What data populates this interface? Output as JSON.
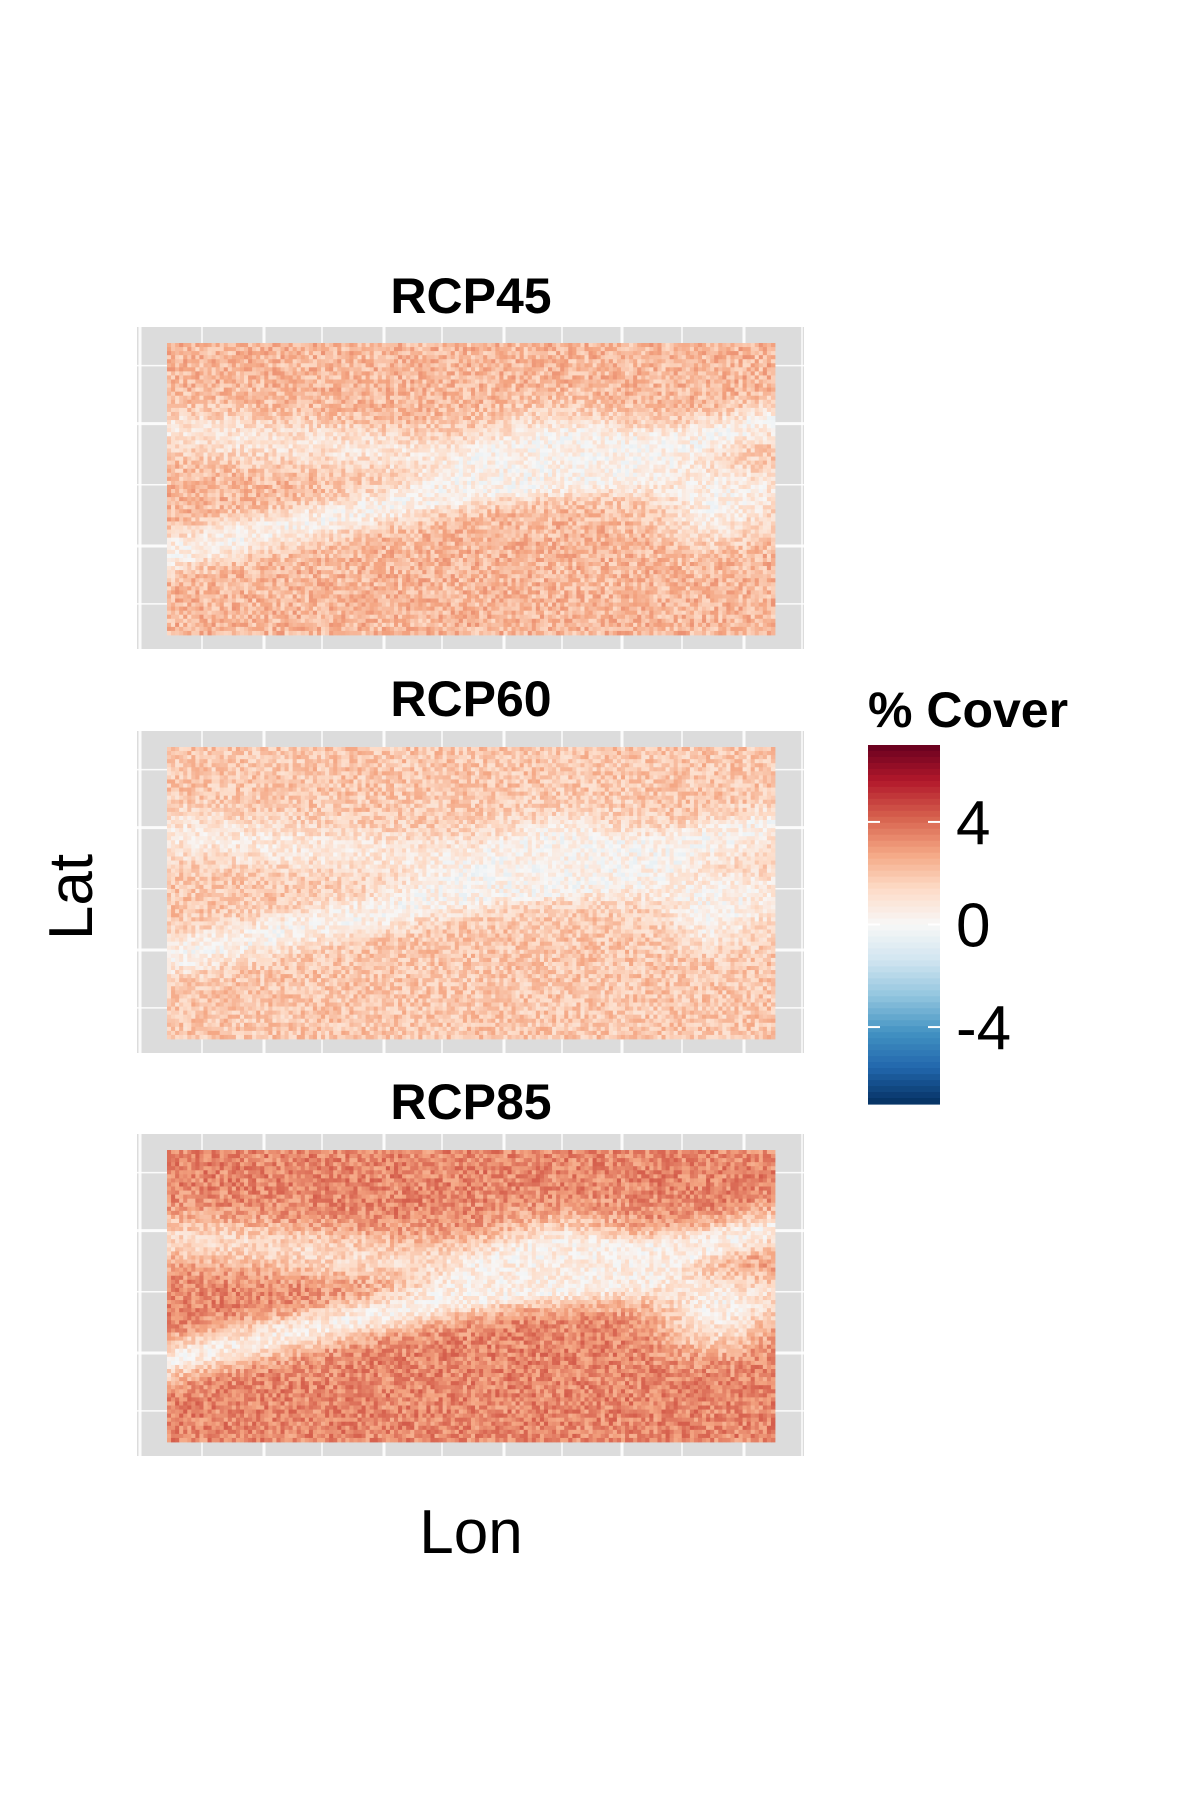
{
  "chart_data": {
    "type": "heatmap",
    "panels": [
      {
        "title": "RCP45",
        "intensity": 2.3
      },
      {
        "title": "RCP60",
        "intensity": 1.9
      },
      {
        "title": "RCP85",
        "intensity": 3.4
      }
    ],
    "xlabel": "Lon",
    "ylabel": "Lat",
    "legend": {
      "title": "% Cover",
      "ticks": [
        "4",
        "0",
        "-4"
      ],
      "tick_values": [
        4,
        0,
        -4
      ],
      "range": [
        -7,
        7
      ],
      "placement": "right"
    },
    "colors": {
      "panel_background": "#dcdcdc",
      "grid": "#ffffff",
      "scale": [
        "#053061",
        "#2166ac",
        "#4393c3",
        "#92c5de",
        "#d1e5f0",
        "#f7f7f7",
        "#fddbc7",
        "#f4a582",
        "#d6604d",
        "#b2182b",
        "#67001f"
      ]
    }
  }
}
